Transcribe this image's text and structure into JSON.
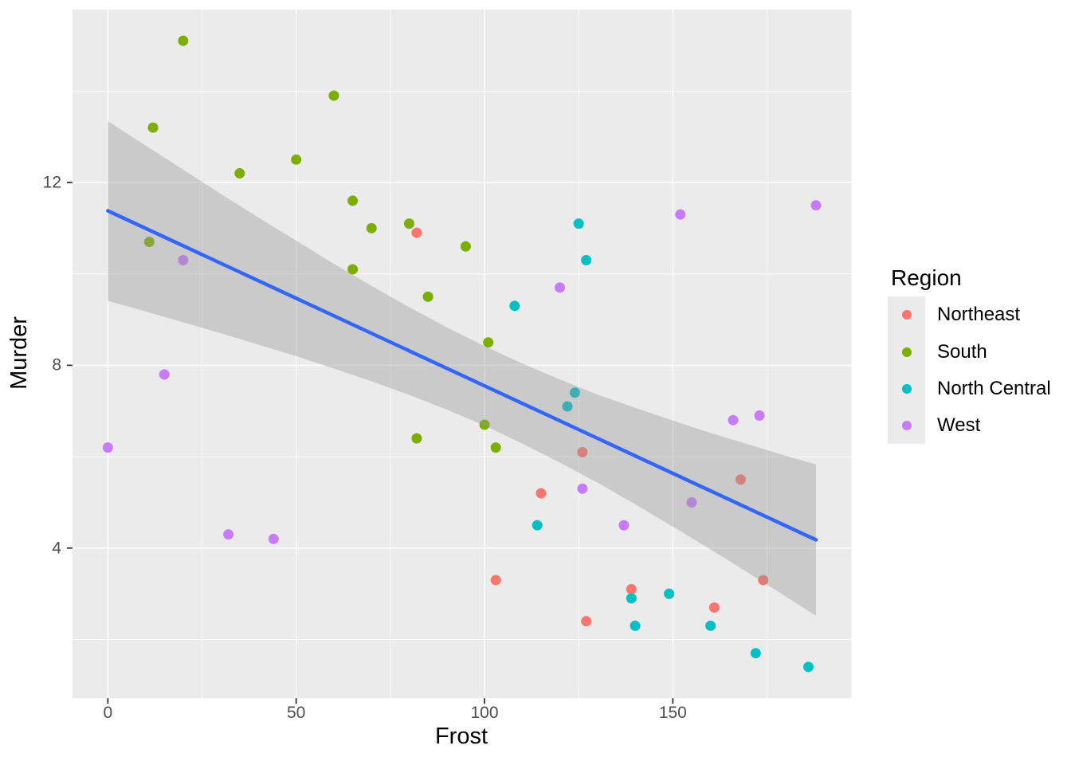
{
  "figure": {
    "background": "#FFFFFF"
  },
  "chart_data": {
    "type": "scatter",
    "title": "",
    "xlabel": "Frost",
    "ylabel": "Murder",
    "xlim": [
      -9.4,
      197.4
    ],
    "ylim": [
      0.715,
      15.785
    ],
    "x_ticks": [
      0,
      50,
      100,
      150
    ],
    "y_ticks": [
      4,
      8,
      12
    ],
    "x_minor_breaks": [
      25,
      75,
      125,
      175
    ],
    "y_minor_breaks": [
      2,
      6,
      10,
      14
    ],
    "grid": true,
    "theme": {
      "panel_background": "#EBEBEB",
      "grid_color": "#FFFFFF",
      "tick_mark_color": "#333333",
      "tick_label_color": "#4D4D4D",
      "axis_title_color": "#000000"
    },
    "legend": {
      "title": "Region",
      "position": "right",
      "entries": [
        {
          "label": "Northeast",
          "color": "#F8766D"
        },
        {
          "label": "South",
          "color": "#7CAE00"
        },
        {
          "label": "North Central",
          "color": "#00BFC4"
        },
        {
          "label": "West",
          "color": "#C77CFF"
        }
      ]
    },
    "series": [
      {
        "name": "Northeast",
        "color": "#F8766D",
        "points": [
          [
            139,
            3.1
          ],
          [
            161,
            2.7
          ],
          [
            103,
            3.3
          ],
          [
            174,
            3.3
          ],
          [
            115,
            5.2
          ],
          [
            82,
            10.9
          ],
          [
            126,
            6.1
          ],
          [
            127,
            2.4
          ],
          [
            168,
            5.5
          ]
        ]
      },
      {
        "name": "South",
        "color": "#7CAE00",
        "points": [
          [
            20,
            15.1
          ],
          [
            65,
            10.1
          ],
          [
            103,
            6.2
          ],
          [
            11,
            10.7
          ],
          [
            60,
            13.9
          ],
          [
            95,
            10.6
          ],
          [
            12,
            13.2
          ],
          [
            101,
            8.5
          ],
          [
            50,
            12.5
          ],
          [
            80,
            11.1
          ],
          [
            82,
            6.4
          ],
          [
            65,
            11.6
          ],
          [
            70,
            11.0
          ],
          [
            35,
            12.2
          ],
          [
            85,
            9.5
          ],
          [
            100,
            6.7
          ]
        ]
      },
      {
        "name": "North Central",
        "color": "#00BFC4",
        "points": [
          [
            127,
            10.3
          ],
          [
            122,
            7.1
          ],
          [
            140,
            2.3
          ],
          [
            114,
            4.5
          ],
          [
            125,
            11.1
          ],
          [
            160,
            2.3
          ],
          [
            108,
            9.3
          ],
          [
            139,
            2.9
          ],
          [
            186,
            1.4
          ],
          [
            124,
            7.4
          ],
          [
            172,
            1.7
          ],
          [
            149,
            3.0
          ]
        ]
      },
      {
        "name": "West",
        "color": "#C77CFF",
        "points": [
          [
            152,
            11.3
          ],
          [
            15,
            7.8
          ],
          [
            20,
            10.3
          ],
          [
            166,
            6.8
          ],
          [
            0,
            6.2
          ],
          [
            126,
            5.3
          ],
          [
            155,
            5.0
          ],
          [
            188,
            11.5
          ],
          [
            120,
            9.7
          ],
          [
            44,
            4.2
          ],
          [
            137,
            4.5
          ],
          [
            32,
            4.3
          ],
          [
            173,
            6.9
          ]
        ]
      }
    ],
    "smooth": {
      "method": "lm",
      "line": {
        "color": "#3366FF",
        "x1": 0,
        "y1": 11.38,
        "x2": 188,
        "y2": 4.18
      },
      "ribbon": {
        "color": "#999999",
        "opacity": 0.4,
        "points": [
          {
            "x": 0,
            "lower": 9.41,
            "upper": 13.34
          },
          {
            "x": 10,
            "lower": 9.18,
            "upper": 12.81
          },
          {
            "x": 20,
            "lower": 8.94,
            "upper": 12.28
          },
          {
            "x": 30,
            "lower": 8.7,
            "upper": 11.75
          },
          {
            "x": 40,
            "lower": 8.45,
            "upper": 11.23
          },
          {
            "x": 50,
            "lower": 8.2,
            "upper": 10.73
          },
          {
            "x": 60,
            "lower": 7.93,
            "upper": 10.22
          },
          {
            "x": 70,
            "lower": 7.65,
            "upper": 9.74
          },
          {
            "x": 80,
            "lower": 7.35,
            "upper": 9.27
          },
          {
            "x": 90,
            "lower": 7.03,
            "upper": 8.83
          },
          {
            "x": 100,
            "lower": 6.68,
            "upper": 8.42
          },
          {
            "x": 110,
            "lower": 6.29,
            "upper": 8.04
          },
          {
            "x": 120,
            "lower": 5.87,
            "upper": 7.69
          },
          {
            "x": 130,
            "lower": 5.43,
            "upper": 7.36
          },
          {
            "x": 140,
            "lower": 4.96,
            "upper": 7.07
          },
          {
            "x": 150,
            "lower": 4.47,
            "upper": 6.79
          },
          {
            "x": 160,
            "lower": 3.97,
            "upper": 6.52
          },
          {
            "x": 170,
            "lower": 3.46,
            "upper": 6.27
          },
          {
            "x": 180,
            "lower": 2.94,
            "upper": 6.02
          },
          {
            "x": 188,
            "lower": 2.52,
            "upper": 5.83
          }
        ]
      }
    }
  }
}
